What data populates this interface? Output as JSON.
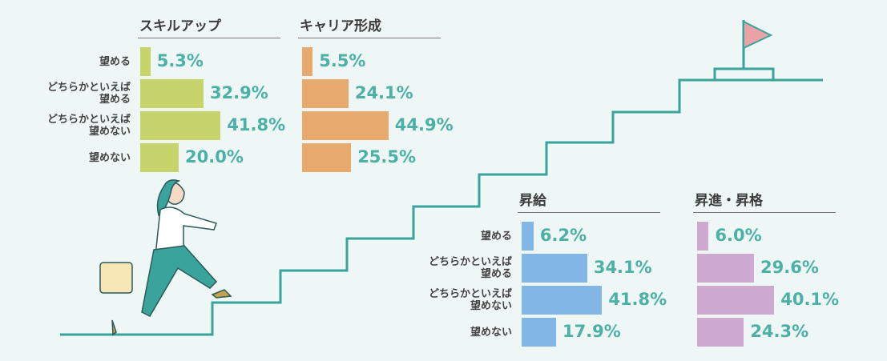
{
  "chart_data": [
    {
      "type": "bar",
      "title": "スキルアップ",
      "categories": [
        "望める",
        "どちらかといえば\n望める",
        "どちらかといえば\n望めない",
        "望めない"
      ],
      "values": [
        5.3,
        32.9,
        41.8,
        20.0
      ],
      "value_labels": [
        "5.3%",
        "32.9%",
        "41.8%",
        "20.0%"
      ],
      "color": "#c6d46b"
    },
    {
      "type": "bar",
      "title": "キャリア形成",
      "values": [
        5.5,
        24.1,
        44.9,
        25.5
      ],
      "value_labels": [
        "5.5%",
        "24.1%",
        "44.9%",
        "25.5%"
      ],
      "color": "#e8aa6c"
    },
    {
      "type": "bar",
      "title": "昇給",
      "categories": [
        "望める",
        "どちらかといえば\n望める",
        "どちらかといえば\n望めない",
        "望めない"
      ],
      "values": [
        6.2,
        34.1,
        41.8,
        17.9
      ],
      "value_labels": [
        "6.2%",
        "34.1%",
        "41.8%",
        "17.9%"
      ],
      "color": "#82b6e6"
    },
    {
      "type": "bar",
      "title": "昇進・昇格",
      "values": [
        6.0,
        29.6,
        40.1,
        24.3
      ],
      "value_labels": [
        "6.0%",
        "29.6%",
        "40.1%",
        "24.3%"
      ],
      "color": "#cea9d0"
    }
  ]
}
